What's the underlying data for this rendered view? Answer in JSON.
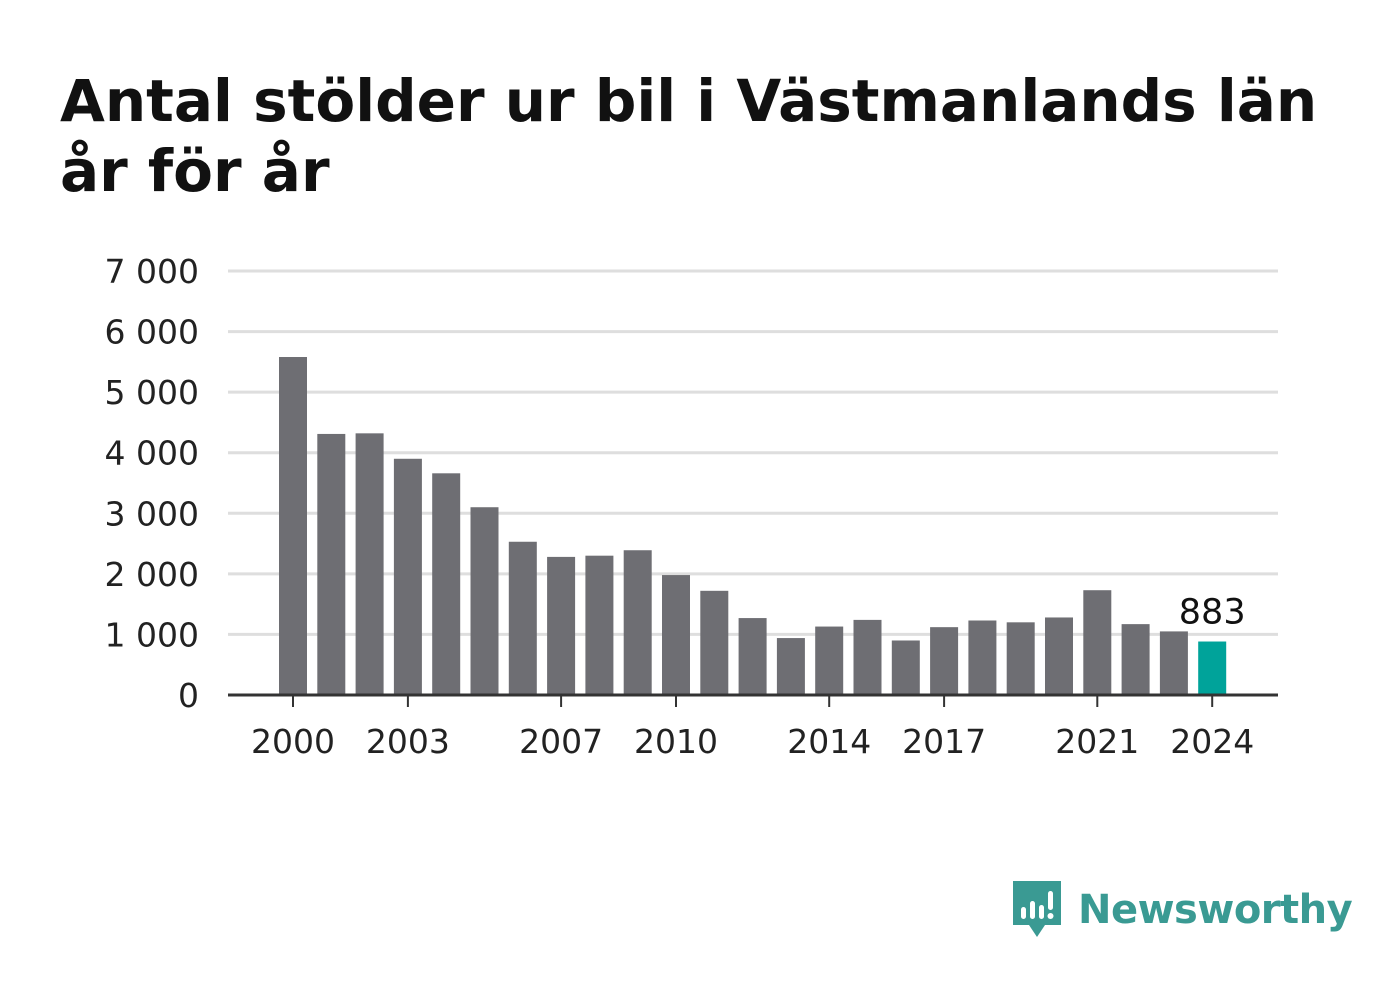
{
  "title": "Antal stölder ur bil i Västmanlands län år för år",
  "brand": {
    "name": "Newsworthy",
    "color": "#3a9a93",
    "icon": "newsworthy-chart-badge-icon"
  },
  "chart_data": {
    "type": "bar",
    "title": "Antal stölder ur bil i Västmanlands län år för år",
    "xlabel": "",
    "ylabel": "",
    "ylim": [
      0,
      7000
    ],
    "yticks": [
      0,
      1000,
      2000,
      3000,
      4000,
      5000,
      6000,
      7000
    ],
    "ytick_labels": [
      "0",
      "1 000",
      "2 000",
      "3 000",
      "4 000",
      "5 000",
      "6 000",
      "7 000"
    ],
    "categories": [
      "2000",
      "2001",
      "2002",
      "2003",
      "2004",
      "2005",
      "2006",
      "2007",
      "2008",
      "2009",
      "2010",
      "2011",
      "2012",
      "2013",
      "2014",
      "2015",
      "2016",
      "2017",
      "2018",
      "2019",
      "2020",
      "2021",
      "2022",
      "2023",
      "2024"
    ],
    "xtick_labels": [
      "2000",
      "2003",
      "2007",
      "2010",
      "2014",
      "2017",
      "2021",
      "2024"
    ],
    "values": [
      5580,
      4310,
      4320,
      3900,
      3660,
      3100,
      2530,
      2280,
      2300,
      2390,
      1980,
      1720,
      1270,
      940,
      1130,
      1240,
      900,
      1120,
      1230,
      1200,
      1280,
      1730,
      1170,
      1050,
      883
    ],
    "grid": true,
    "legend": "none",
    "bar_color": "#6e6e73",
    "highlight_color": "#00a39a",
    "highlight_category": "2024",
    "annotation": {
      "category": "2024",
      "text": "883"
    }
  }
}
